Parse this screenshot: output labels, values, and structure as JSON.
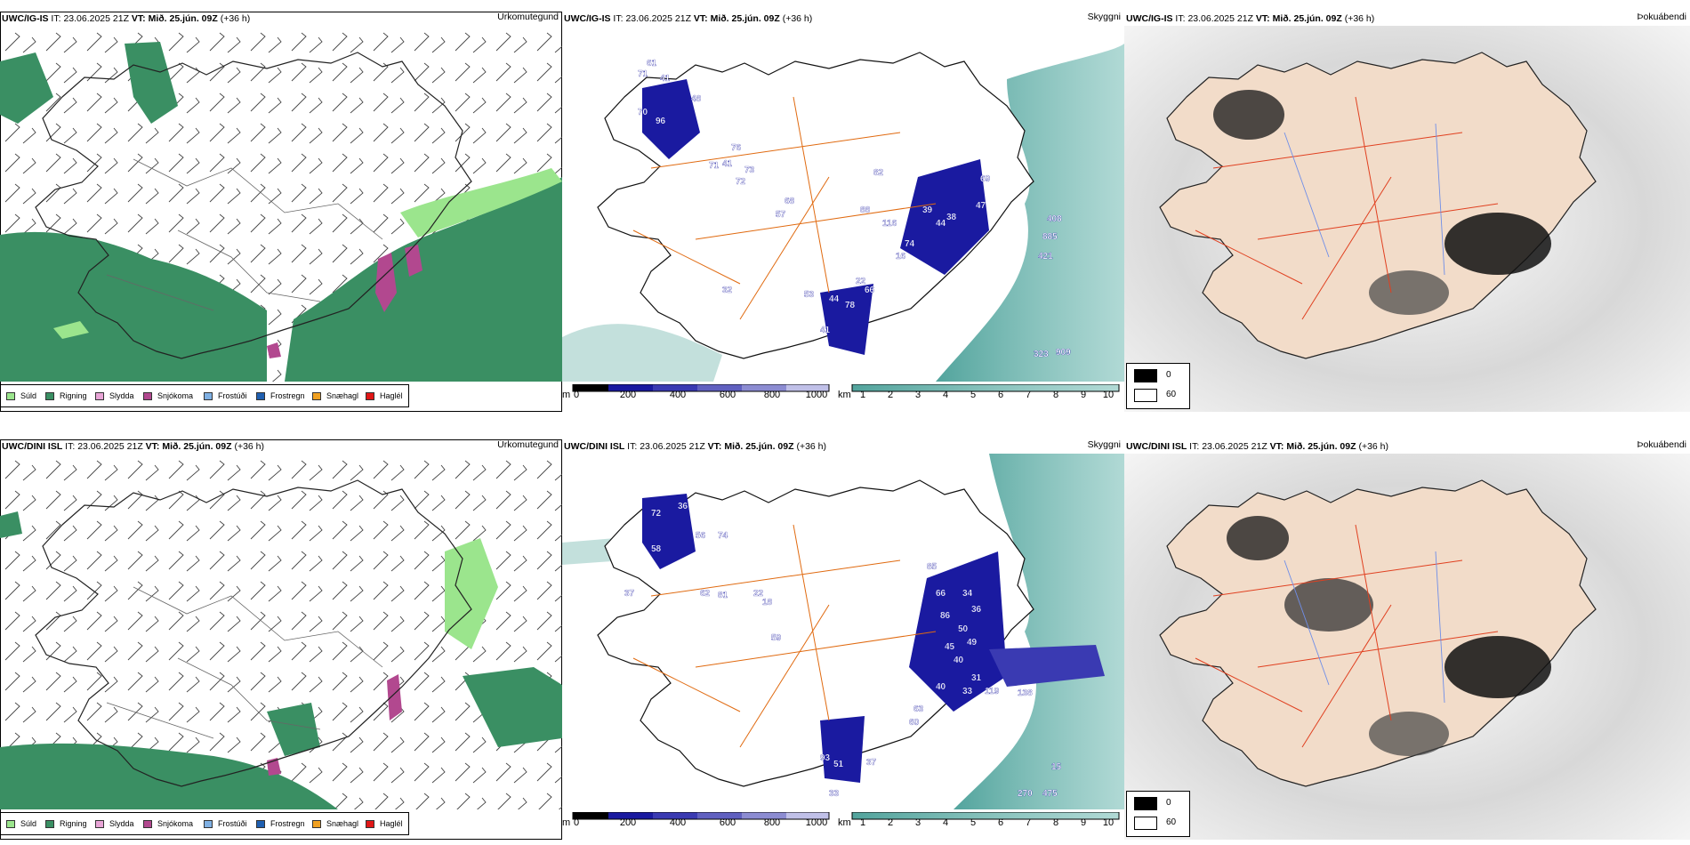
{
  "colors": {
    "suld": "#9be58d",
    "rigning": "#3a8f63",
    "slydda": "#e8a4d6",
    "snjokoma": "#b2488f",
    "frostudi": "#7fb0e3",
    "frostregn": "#1f5fb0",
    "snaehagl": "#f0a020",
    "haglel": "#e01616",
    "cloud_dark": "#1a1aa0",
    "cloud_teal": "#4f9f96",
    "road": "#e06a10",
    "land_fog": "#f2dcc9"
  },
  "rows": [
    {
      "model": "UWC/IG-IS",
      "issue_label": "IT:",
      "issue_time": "23.06.2025 21Z",
      "valid_label": "VT:",
      "valid_time": "Mið. 25.jún. 09Z",
      "lead": "(+36 h)",
      "precip_title": "Úrkomutegund",
      "visibility_title": "Skyggni",
      "fog_title": "Þokuábendi",
      "cloud_base_labels": [
        "61",
        "71",
        "41",
        "48",
        "70",
        "96",
        "76",
        "41",
        "71",
        "73",
        "72",
        "68",
        "57",
        "82",
        "88",
        "116",
        "74",
        "16",
        "39",
        "44",
        "38",
        "47",
        "69",
        "53",
        "44",
        "78",
        "22",
        "66",
        "41",
        "32",
        "408",
        "885",
        "421",
        "909",
        "323"
      ]
    },
    {
      "model": "UWC/DINI ISL",
      "issue_label": "IT:",
      "issue_time": "23.06.2025 21Z",
      "valid_label": "VT:",
      "valid_time": "Mið. 25.jún. 09Z",
      "lead": "(+36 h)",
      "precip_title": "Úrkomutegund",
      "visibility_title": "Skyggni",
      "fog_title": "Þokuábendi",
      "cloud_base_labels": [
        "72",
        "36",
        "56",
        "74",
        "58",
        "37",
        "62",
        "81",
        "22",
        "18",
        "59",
        "85",
        "66",
        "86",
        "34",
        "36",
        "50",
        "49",
        "45",
        "40",
        "31",
        "33",
        "40",
        "63",
        "60",
        "119",
        "138",
        "93",
        "51",
        "37",
        "33",
        "270",
        "475",
        "15"
      ]
    }
  ],
  "precip_legend": [
    {
      "label": "Súld",
      "color_key": "suld"
    },
    {
      "label": "Rigning",
      "color_key": "rigning"
    },
    {
      "label": "Slydda",
      "color_key": "slydda"
    },
    {
      "label": "Snjókoma",
      "color_key": "snjokoma"
    },
    {
      "label": "Frostúði",
      "color_key": "frostudi"
    },
    {
      "label": "Frostregn",
      "color_key": "frostregn"
    },
    {
      "label": "Snæhagl",
      "color_key": "snaehagl"
    },
    {
      "label": "Haglél",
      "color_key": "haglel"
    }
  ],
  "cloud_scale": {
    "unit": "m",
    "ticks": [
      "0",
      "200",
      "400",
      "600",
      "800",
      "1000"
    ]
  },
  "vis_scale": {
    "unit": "km",
    "ticks": [
      "1",
      "2",
      "3",
      "4",
      "5",
      "6",
      "7",
      "8",
      "9",
      "10"
    ]
  },
  "fog_scale": {
    "labels": [
      "0",
      "60"
    ]
  }
}
